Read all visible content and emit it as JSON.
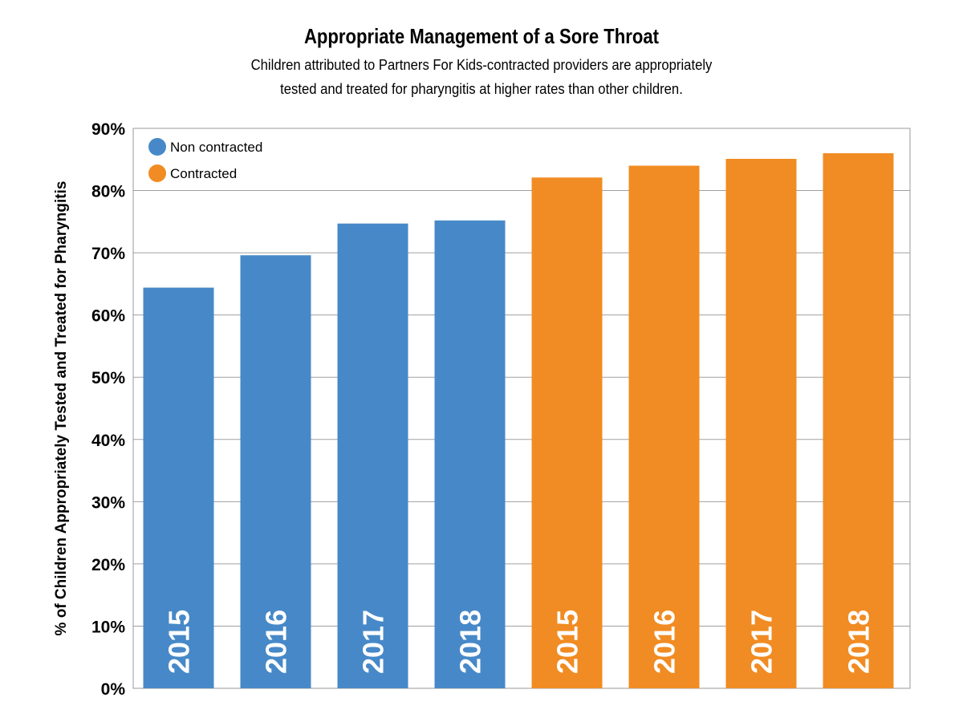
{
  "chart_data": {
    "type": "bar",
    "title": "Appropriate Management of a Sore Throat",
    "subtitle": [
      "Children attributed to Partners For Kids-contracted providers are appropriately",
      "tested and treated for pharyngitis at higher rates than other children."
    ],
    "xlabel": "",
    "ylabel": "% of Children Appropriately Tested and Treated for Pharyngitis",
    "ylim": [
      0,
      90
    ],
    "yticks": [
      "0%",
      "10%",
      "20%",
      "30%",
      "40%",
      "50%",
      "60%",
      "70%",
      "80%",
      "90%"
    ],
    "grid": true,
    "legend_placement": "top-left",
    "series": [
      {
        "name": "Non contracted",
        "color": "#4789c8",
        "categories": [
          "2015",
          "2016",
          "2017",
          "2018"
        ],
        "values": [
          64.4,
          69.6,
          74.7,
          75.2
        ]
      },
      {
        "name": "Contracted",
        "color": "#f08c23",
        "categories": [
          "2015",
          "2016",
          "2017",
          "2018"
        ],
        "values": [
          82.1,
          84.0,
          85.1,
          86.0
        ]
      }
    ]
  }
}
